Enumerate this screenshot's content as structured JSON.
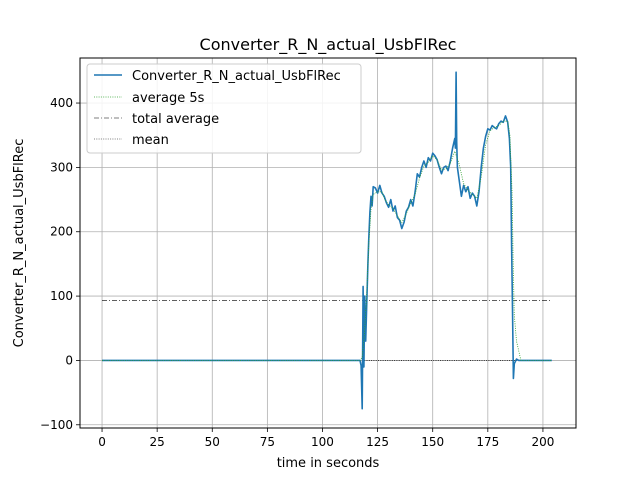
{
  "chart_data": {
    "type": "line",
    "title": "Converter_R_N_actual_UsbFlRec",
    "xlabel": "time in seconds",
    "ylabel": "Converter_R_N_actual_UsbFlRec",
    "xlim": [
      -10,
      215
    ],
    "ylim": [
      -105,
      470
    ],
    "xticks": [
      0,
      25,
      50,
      75,
      100,
      125,
      150,
      175,
      200
    ],
    "yticks": [
      -100,
      0,
      100,
      200,
      300,
      400
    ],
    "grid": true,
    "legend_position": "top-left",
    "series": [
      {
        "name": "Converter_R_N_actual_UsbFlRec",
        "style": "solid",
        "color": "#1f77b4",
        "points": [
          [
            0,
            0
          ],
          [
            117,
            0
          ],
          [
            117.5,
            -8
          ],
          [
            118,
            -75
          ],
          [
            118.4,
            115
          ],
          [
            118.8,
            -10
          ],
          [
            119.2,
            100
          ],
          [
            119.6,
            30
          ],
          [
            120,
            80
          ],
          [
            120.6,
            150
          ],
          [
            121,
            190
          ],
          [
            121.5,
            230
          ],
          [
            122,
            255
          ],
          [
            122.5,
            240
          ],
          [
            123,
            270
          ],
          [
            124,
            268
          ],
          [
            125,
            260
          ],
          [
            126,
            272
          ],
          [
            127,
            260
          ],
          [
            128,
            255
          ],
          [
            129,
            245
          ],
          [
            130,
            238
          ],
          [
            131,
            250
          ],
          [
            132,
            232
          ],
          [
            133,
            240
          ],
          [
            134,
            222
          ],
          [
            135,
            218
          ],
          [
            136,
            205
          ],
          [
            137,
            215
          ],
          [
            138,
            232
          ],
          [
            139,
            238
          ],
          [
            140,
            250
          ],
          [
            141,
            240
          ],
          [
            142,
            262
          ],
          [
            143,
            290
          ],
          [
            144,
            285
          ],
          [
            145,
            300
          ],
          [
            146,
            310
          ],
          [
            147,
            300
          ],
          [
            148,
            315
          ],
          [
            149,
            310
          ],
          [
            150,
            322
          ],
          [
            151,
            318
          ],
          [
            152,
            312
          ],
          [
            153,
            300
          ],
          [
            154,
            290
          ],
          [
            155,
            300
          ],
          [
            156,
            302
          ],
          [
            157,
            295
          ],
          [
            158,
            310
          ],
          [
            159,
            330
          ],
          [
            160,
            345
          ],
          [
            160.3,
            330
          ],
          [
            160.6,
            448
          ],
          [
            160.9,
            340
          ],
          [
            161.2,
            300
          ],
          [
            162,
            280
          ],
          [
            163,
            255
          ],
          [
            164,
            272
          ],
          [
            165,
            262
          ],
          [
            166,
            270
          ],
          [
            167,
            252
          ],
          [
            168,
            260
          ],
          [
            169,
            255
          ],
          [
            170,
            240
          ],
          [
            171,
            262
          ],
          [
            172,
            300
          ],
          [
            173,
            330
          ],
          [
            174,
            348
          ],
          [
            175,
            360
          ],
          [
            176,
            358
          ],
          [
            177,
            365
          ],
          [
            178,
            362
          ],
          [
            179,
            360
          ],
          [
            180,
            368
          ],
          [
            181,
            372
          ],
          [
            182,
            370
          ],
          [
            183,
            380
          ],
          [
            184,
            370
          ],
          [
            184.8,
            345
          ],
          [
            185.4,
            300
          ],
          [
            185.8,
            180
          ],
          [
            186.2,
            80
          ],
          [
            186.6,
            -28
          ],
          [
            187,
            -5
          ],
          [
            188,
            2
          ],
          [
            189,
            0
          ],
          [
            204,
            0
          ]
        ]
      },
      {
        "name": "average 5s",
        "style": "dotted",
        "color": "#2ca02c",
        "points": [
          [
            0,
            0
          ],
          [
            117,
            0
          ],
          [
            118,
            5
          ],
          [
            119,
            40
          ],
          [
            120,
            100
          ],
          [
            121,
            180
          ],
          [
            122,
            235
          ],
          [
            123,
            258
          ],
          [
            125,
            262
          ],
          [
            127,
            262
          ],
          [
            128,
            252
          ],
          [
            130,
            242
          ],
          [
            132,
            236
          ],
          [
            134,
            225
          ],
          [
            136,
            214
          ],
          [
            138,
            228
          ],
          [
            140,
            244
          ],
          [
            142,
            258
          ],
          [
            144,
            283
          ],
          [
            146,
            302
          ],
          [
            148,
            308
          ],
          [
            150,
            318
          ],
          [
            152,
            312
          ],
          [
            154,
            296
          ],
          [
            156,
            298
          ],
          [
            158,
            306
          ],
          [
            160,
            325
          ],
          [
            162,
            305
          ],
          [
            164,
            275
          ],
          [
            166,
            264
          ],
          [
            168,
            258
          ],
          [
            170,
            252
          ],
          [
            172,
            285
          ],
          [
            174,
            335
          ],
          [
            176,
            357
          ],
          [
            178,
            362
          ],
          [
            180,
            365
          ],
          [
            182,
            372
          ],
          [
            184,
            372
          ],
          [
            185,
            350
          ],
          [
            186,
            260
          ],
          [
            186.5,
            150
          ],
          [
            187,
            70
          ],
          [
            188,
            30
          ],
          [
            189,
            15
          ],
          [
            190,
            0
          ],
          [
            204,
            0
          ]
        ]
      },
      {
        "name": "total average",
        "style": "dashdot",
        "color": "#000000",
        "points": [
          [
            0,
            93
          ],
          [
            204,
            93
          ]
        ]
      },
      {
        "name": "mean",
        "style": "dotted",
        "color": "#000000",
        "points": [
          [
            0,
            0
          ],
          [
            204,
            0
          ]
        ]
      }
    ]
  }
}
